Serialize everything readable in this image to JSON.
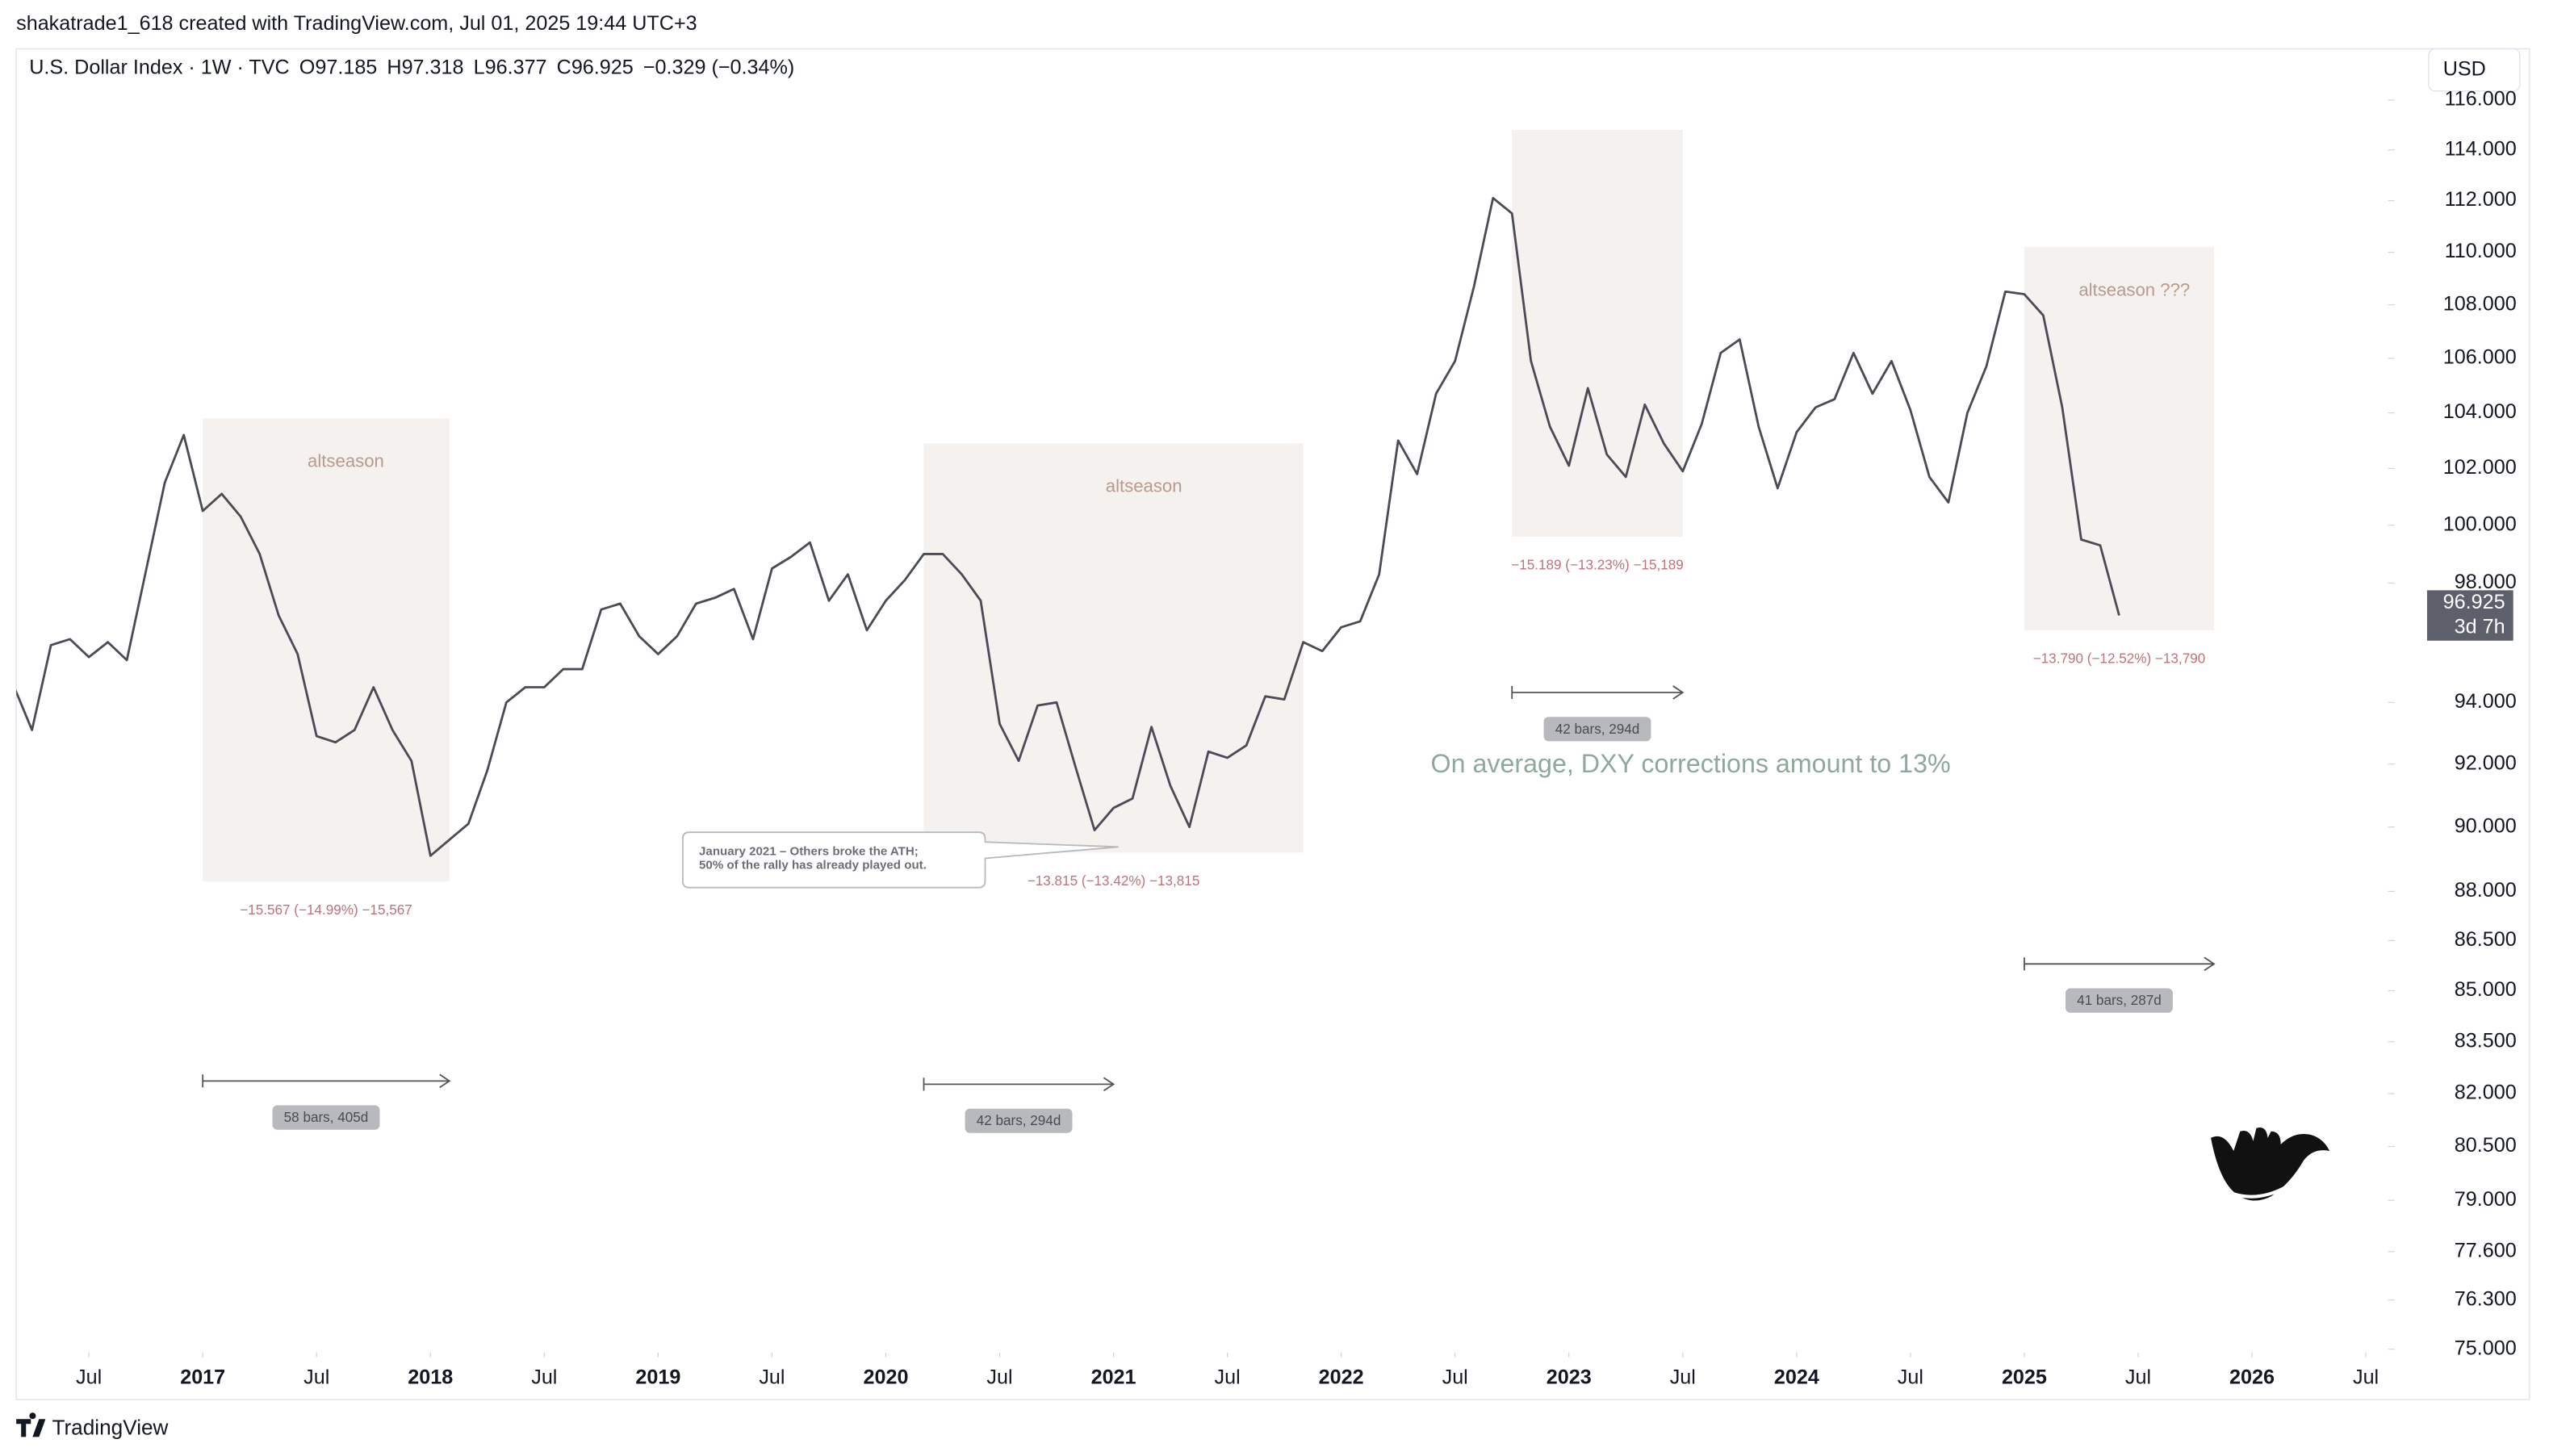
{
  "header": {
    "author_line": "shakatrade1_618 created with TradingView.com, Jul 01, 2025 19:44 UTC+3",
    "symbol": "U.S. Dollar Index · 1W · TVC",
    "open_label": "O",
    "open": 97.185,
    "high_label": "H",
    "high": 97.318,
    "low_label": "L",
    "low": 96.377,
    "close_label": "C",
    "close": 96.925,
    "change": "−0.329 (−0.34%)",
    "currency": "USD",
    "brand": "TradingView"
  },
  "chart_data": {
    "type": "line",
    "color": "#4a4b55",
    "log_scale": true,
    "x": [
      "2016-03",
      "2016-04",
      "2016-05",
      "2016-06",
      "2016-07",
      "2016-08",
      "2016-09",
      "2016-10",
      "2016-11",
      "2016-12",
      "2017-01",
      "2017-02",
      "2017-03",
      "2017-04",
      "2017-05",
      "2017-06",
      "2017-07",
      "2017-08",
      "2017-09",
      "2017-10",
      "2017-11",
      "2017-12",
      "2018-01",
      "2018-02",
      "2018-03",
      "2018-04",
      "2018-05",
      "2018-06",
      "2018-07",
      "2018-08",
      "2018-09",
      "2018-10",
      "2018-11",
      "2018-12",
      "2019-01",
      "2019-02",
      "2019-03",
      "2019-04",
      "2019-05",
      "2019-06",
      "2019-07",
      "2019-08",
      "2019-09",
      "2019-10",
      "2019-11",
      "2019-12",
      "2020-01",
      "2020-02",
      "2020-03",
      "2020-04",
      "2020-05",
      "2020-06",
      "2020-07",
      "2020-08",
      "2020-09",
      "2020-10",
      "2020-11",
      "2020-12",
      "2021-01",
      "2021-02",
      "2021-03",
      "2021-04",
      "2021-05",
      "2021-06",
      "2021-07",
      "2021-08",
      "2021-09",
      "2021-10",
      "2021-11",
      "2021-12",
      "2022-01",
      "2022-02",
      "2022-03",
      "2022-04",
      "2022-05",
      "2022-06",
      "2022-07",
      "2022-08",
      "2022-09",
      "2022-10",
      "2022-11",
      "2022-12",
      "2023-01",
      "2023-02",
      "2023-03",
      "2023-04",
      "2023-05",
      "2023-06",
      "2023-07",
      "2023-08",
      "2023-09",
      "2023-10",
      "2023-11",
      "2023-12",
      "2024-01",
      "2024-02",
      "2024-03",
      "2024-04",
      "2024-05",
      "2024-06",
      "2024-07",
      "2024-08",
      "2024-09",
      "2024-10",
      "2024-11",
      "2024-12",
      "2025-01",
      "2025-02",
      "2025-03",
      "2025-04",
      "2025-05",
      "2025-06"
    ],
    "values": [
      94.6,
      93.1,
      95.9,
      96.1,
      95.5,
      96.0,
      95.4,
      98.4,
      101.5,
      103.2,
      100.5,
      101.1,
      100.3,
      99.0,
      96.9,
      95.6,
      92.9,
      92.7,
      93.1,
      94.5,
      93.1,
      92.1,
      89.1,
      89.6,
      90.1,
      91.8,
      94.0,
      94.5,
      94.5,
      95.1,
      95.1,
      97.1,
      97.3,
      96.2,
      95.6,
      96.2,
      97.3,
      97.5,
      97.8,
      96.1,
      98.5,
      98.9,
      99.4,
      97.4,
      98.3,
      96.4,
      97.4,
      98.1,
      99.0,
      99.0,
      98.3,
      97.4,
      93.3,
      92.1,
      93.9,
      94.0,
      91.9,
      89.9,
      90.6,
      90.9,
      93.2,
      91.3,
      90.0,
      92.4,
      92.2,
      92.6,
      94.2,
      94.1,
      96.0,
      95.7,
      96.5,
      96.7,
      98.3,
      103.0,
      101.8,
      104.7,
      105.9,
      108.7,
      112.1,
      111.5,
      105.9,
      103.5,
      102.1,
      104.9,
      102.5,
      101.7,
      104.3,
      102.9,
      101.9,
      103.6,
      106.2,
      106.7,
      103.5,
      101.3,
      103.3,
      104.2,
      104.5,
      106.2,
      104.7,
      105.9,
      104.1,
      101.7,
      100.8,
      104.0,
      105.7,
      108.5,
      108.4,
      107.6,
      104.2,
      99.5,
      99.3,
      96.9
    ],
    "last_price": 96.925,
    "countdown": "3d 7h",
    "xlim": [
      "2016-03",
      "2026-08"
    ],
    "xticks": [
      {
        "value": "2016-07",
        "label": "Jul"
      },
      {
        "value": "2017-01",
        "label": "2017"
      },
      {
        "value": "2017-07",
        "label": "Jul"
      },
      {
        "value": "2018-01",
        "label": "2018"
      },
      {
        "value": "2018-07",
        "label": "Jul"
      },
      {
        "value": "2019-01",
        "label": "2019"
      },
      {
        "value": "2019-07",
        "label": "Jul"
      },
      {
        "value": "2020-01",
        "label": "2020"
      },
      {
        "value": "2020-07",
        "label": "Jul"
      },
      {
        "value": "2021-01",
        "label": "2021"
      },
      {
        "value": "2021-07",
        "label": "Jul"
      },
      {
        "value": "2022-01",
        "label": "2022"
      },
      {
        "value": "2022-07",
        "label": "Jul"
      },
      {
        "value": "2023-01",
        "label": "2023"
      },
      {
        "value": "2023-07",
        "label": "Jul"
      },
      {
        "value": "2024-01",
        "label": "2024"
      },
      {
        "value": "2024-07",
        "label": "Jul"
      },
      {
        "value": "2025-01",
        "label": "2025"
      },
      {
        "value": "2025-07",
        "label": "Jul"
      },
      {
        "value": "2026-01",
        "label": "2026"
      },
      {
        "value": "2026-07",
        "label": "Jul"
      }
    ],
    "ylim": [
      75,
      116.5
    ],
    "yticks": [
      {
        "value": 116,
        "label": "116.000"
      },
      {
        "value": 114,
        "label": "114.000"
      },
      {
        "value": 112,
        "label": "112.000"
      },
      {
        "value": 110,
        "label": "110.000"
      },
      {
        "value": 108,
        "label": "108.000"
      },
      {
        "value": 106,
        "label": "106.000"
      },
      {
        "value": 104,
        "label": "104.000"
      },
      {
        "value": 102,
        "label": "102.000"
      },
      {
        "value": 100,
        "label": "100.000"
      },
      {
        "value": 98,
        "label": "98.000"
      },
      {
        "value": 94,
        "label": "94.000"
      },
      {
        "value": 92,
        "label": "92.000"
      },
      {
        "value": 90,
        "label": "90.000"
      },
      {
        "value": 88,
        "label": "88.000"
      },
      {
        "value": 86.5,
        "label": "86.500"
      },
      {
        "value": 85,
        "label": "85.000"
      },
      {
        "value": 83.5,
        "label": "83.500"
      },
      {
        "value": 82,
        "label": "82.000"
      },
      {
        "value": 80.5,
        "label": "80.500"
      },
      {
        "value": 79,
        "label": "79.000"
      },
      {
        "value": 77.6,
        "label": "77.600"
      },
      {
        "value": 76.3,
        "label": "76.300"
      },
      {
        "value": 75,
        "label": "75.000"
      }
    ],
    "boxes": [
      {
        "from": "2017-01",
        "to": "2018-02",
        "top": 103.8,
        "bottom": 88.3,
        "label": "altseason",
        "measure": "−15.567 (−14.99%) −15,567",
        "range": {
          "from": "2017-01",
          "to": "2018-02",
          "label": "58 bars, 405d"
        }
      },
      {
        "from": "2020-03",
        "to": "2021-11",
        "top": 102.9,
        "bottom": 89.2,
        "label": "altseason",
        "measure": "−13.815 (−13.42%) −13,815",
        "range": {
          "from": "2020-03",
          "to": "2021-01",
          "label": "42 bars, 294d"
        }
      },
      {
        "from": "2022-10",
        "to": "2023-07",
        "top": 114.8,
        "bottom": 99.6,
        "measure": "−15.189 (−13.23%) −15,189",
        "range": {
          "from": "2022-10",
          "to": "2023-07",
          "label": "42 bars, 294d"
        }
      },
      {
        "from": "2025-01",
        "to": "2025-11",
        "top": 110.2,
        "bottom": 96.4,
        "label": "altseason ???",
        "measure": "−13.790 (−12.52%) −13,790",
        "range": {
          "from": "2025-01",
          "to": "2025-11",
          "label": "41 bars, 287d"
        }
      }
    ],
    "callout": {
      "lines": [
        "January 2021 – Others broke the ATH;",
        "50% of the rally has already played out."
      ]
    },
    "note": "On average, DXY corrections amount to 13%"
  }
}
